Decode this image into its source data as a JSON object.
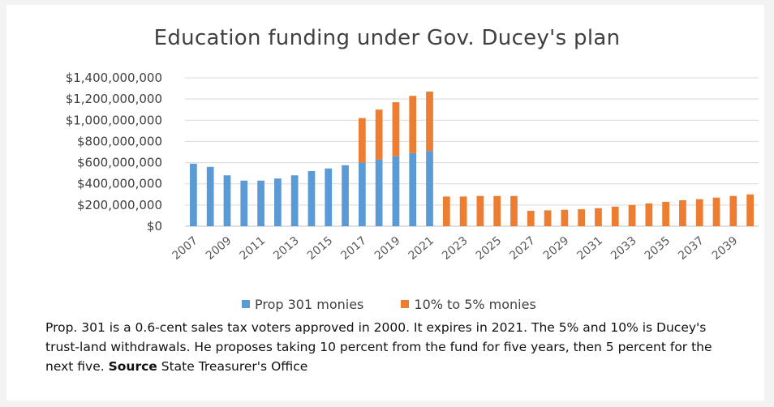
{
  "caption": {
    "text": "Prop. 301 is a 0.6-cent sales tax voters approved in 2000. It expires in 2021. The 5% and 10% is Ducey's trust-land withdrawals. He proposes taking 10 percent from the fund for five years, then 5 percent for the next five.",
    "source_label": "Source",
    "source_text": "State Treasurer's Office"
  },
  "chart_data": {
    "type": "bar",
    "stacked": true,
    "title": "Education funding under Gov. Ducey's plan",
    "xlabel": "",
    "ylabel": "",
    "ylim": [
      0,
      1400000000
    ],
    "yticks": [
      0,
      200000000,
      400000000,
      600000000,
      800000000,
      1000000000,
      1200000000,
      1400000000
    ],
    "ytick_labels": [
      "$0",
      "$200,000,000",
      "$400,000,000",
      "$600,000,000",
      "$800,000,000",
      "$1,000,000,000",
      "$1,200,000,000",
      "$1,400,000,000"
    ],
    "grid": true,
    "legend_position": "bottom",
    "categories": [
      2007,
      2008,
      2009,
      2010,
      2011,
      2012,
      2013,
      2014,
      2015,
      2016,
      2017,
      2018,
      2019,
      2020,
      2021,
      2022,
      2023,
      2024,
      2025,
      2026,
      2027,
      2028,
      2029,
      2030,
      2031,
      2032,
      2033,
      2034,
      2035,
      2036,
      2037,
      2038,
      2039,
      2040
    ],
    "xtick_labels": [
      "2007",
      "2009",
      "2011",
      "2013",
      "2015",
      "2017",
      "2019",
      "2021",
      "2023",
      "2025",
      "2027",
      "2029",
      "2031",
      "2033",
      "2035",
      "2037",
      "2039"
    ],
    "series": [
      {
        "name": "Prop 301 monies",
        "color": "#5b9bd5",
        "values": [
          590000000,
          560000000,
          480000000,
          430000000,
          430000000,
          450000000,
          480000000,
          520000000,
          545000000,
          575000000,
          600000000,
          630000000,
          660000000,
          690000000,
          710000000,
          0,
          0,
          0,
          0,
          0,
          0,
          0,
          0,
          0,
          0,
          0,
          0,
          0,
          0,
          0,
          0,
          0,
          0,
          0
        ]
      },
      {
        "name": "10% to 5% monies",
        "color": "#ed7d31",
        "values": [
          0,
          0,
          0,
          0,
          0,
          0,
          0,
          0,
          0,
          0,
          420000000,
          470000000,
          510000000,
          540000000,
          560000000,
          280000000,
          280000000,
          285000000,
          285000000,
          285000000,
          145000000,
          150000000,
          155000000,
          160000000,
          170000000,
          185000000,
          200000000,
          215000000,
          230000000,
          245000000,
          255000000,
          270000000,
          285000000,
          300000000
        ]
      }
    ]
  }
}
